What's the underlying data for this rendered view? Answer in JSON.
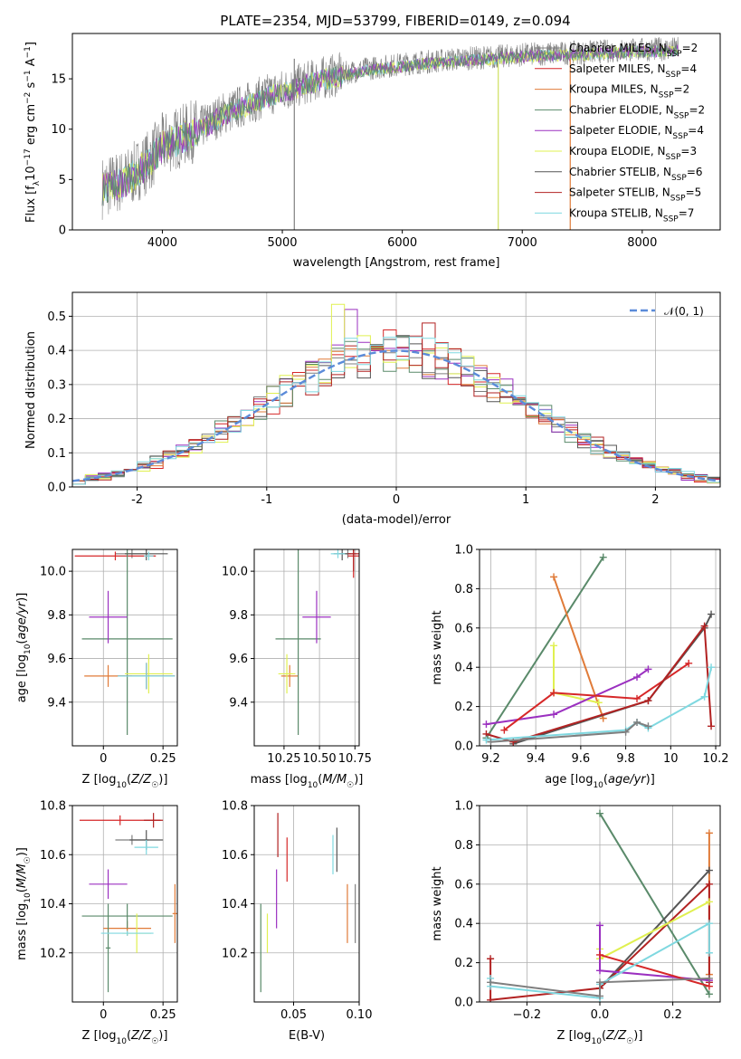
{
  "title": "PLATE=2354, MJD=53799, FIBERID=0149, z=0.094",
  "colors": {
    "Chabrier MILES": "#7f7f7f",
    "Salpeter MILES": "#d62728",
    "Kroupa MILES": "#e07b39",
    "Chabrier ELODIE": "#5a8a6a",
    "Salpeter ELODIE": "#9b30c0",
    "Kroupa ELODIE": "#e0f050",
    "Chabrier STELIB": "#555555",
    "Salpeter STELIB": "#b22222",
    "Kroupa STELIB": "#7fd8e0",
    "gaussian": "#5b8bd9"
  },
  "legend": [
    {
      "model": "Chabrier MILES",
      "pre": "Chabrier MILES, N",
      "sub": "SSP",
      "post": "=2"
    },
    {
      "model": "Salpeter MILES",
      "pre": "Salpeter MILES, N",
      "sub": "SSP",
      "post": "=4"
    },
    {
      "model": "Kroupa MILES",
      "pre": "Kroupa MILES, N",
      "sub": "SSP",
      "post": "=2"
    },
    {
      "model": "Chabrier ELODIE",
      "pre": "Chabrier ELODIE, N",
      "sub": "SSP",
      "post": "=2"
    },
    {
      "model": "Salpeter ELODIE",
      "pre": "Salpeter ELODIE, N",
      "sub": "SSP",
      "post": "=4"
    },
    {
      "model": "Kroupa ELODIE",
      "pre": "Kroupa ELODIE, N",
      "sub": "SSP",
      "post": "=3"
    },
    {
      "model": "Chabrier STELIB",
      "pre": "Chabrier STELIB, N",
      "sub": "SSP",
      "post": "=6"
    },
    {
      "model": "Salpeter STELIB",
      "pre": "Salpeter STELIB, N",
      "sub": "SSP",
      "post": "=5"
    },
    {
      "model": "Kroupa STELIB",
      "pre": "Kroupa STELIB, N",
      "sub": "SSP",
      "post": "=7"
    }
  ],
  "chart_data": [
    {
      "type": "line",
      "id": "spectrum",
      "xlabel": "wavelength [Angstrom, rest frame]",
      "ylabel": "Flux [fλ10⁻¹⁷ erg cm⁻² s⁻¹ A⁻¹]",
      "xlim": [
        3250,
        8650
      ],
      "ylim": [
        0,
        19.5
      ],
      "xticks": [
        4000,
        5000,
        6000,
        7000,
        8000
      ],
      "yticks": [
        0,
        5,
        10,
        15
      ],
      "data_envelope": {
        "x": [
          3500,
          3600,
          3700,
          3800,
          3900,
          4000,
          4100,
          4200,
          4300,
          4500,
          4700,
          4900,
          5100,
          5300,
          5500,
          5700,
          5900,
          6100,
          6300,
          6500,
          6800,
          7000,
          7200,
          7500,
          7800,
          8000,
          8300
        ],
        "y": [
          4.2,
          4.6,
          5.0,
          6.0,
          7.0,
          8.5,
          9.0,
          9.5,
          10.0,
          11.5,
          12.5,
          13.5,
          14.2,
          15.0,
          15.5,
          16.0,
          16.3,
          16.6,
          16.8,
          17.0,
          17.2,
          17.4,
          17.5,
          17.6,
          17.8,
          17.9,
          18.0
        ]
      },
      "glitches_x": [
        5100,
        6800,
        7400
      ]
    },
    {
      "type": "histogram",
      "id": "residuals",
      "xlabel": "(data-model)/error",
      "ylabel": "Normed distribution",
      "xlim": [
        -2.5,
        2.5
      ],
      "ylim": [
        0,
        0.57
      ],
      "xticks": [
        -2,
        -1,
        0,
        1,
        2
      ],
      "yticks": [
        0.0,
        0.1,
        0.2,
        0.3,
        0.4,
        0.5
      ],
      "bin_width": 0.1,
      "reference": {
        "label": "𝒩(0, 1)",
        "mean": 0,
        "sigma": 1
      },
      "notable_bins": [
        {
          "model": "Kroupa ELODIE",
          "x_left": -0.5,
          "value": 0.535
        },
        {
          "model": "Salpeter ELODIE",
          "x_left": -0.4,
          "value": 0.52
        },
        {
          "model": "Salpeter STELIB",
          "x_left": 0.2,
          "value": 0.48
        }
      ]
    },
    {
      "type": "scatter",
      "id": "age-vs-Z",
      "xlabel": "Z [log10(Z/Z☉)]",
      "ylabel": "age  [log10(age/yr)]",
      "xlim": [
        -0.13,
        0.31
      ],
      "ylim": [
        9.2,
        10.1
      ],
      "xticks": [
        0.0,
        0.25
      ],
      "yticks": [
        9.4,
        9.6,
        9.8,
        10.0
      ],
      "points": [
        {
          "model": "Chabrier MILES",
          "x": 0.12,
          "y": 10.08,
          "xerr": 0.07,
          "yerr": 0.02
        },
        {
          "model": "Salpeter MILES",
          "x": 0.05,
          "y": 10.07,
          "xerr": 0.17,
          "yerr": 0.02
        },
        {
          "model": "Kroupa MILES",
          "x": 0.02,
          "y": 9.52,
          "xerr": 0.1,
          "yerr": 0.05
        },
        {
          "model": "Chabrier ELODIE",
          "x": 0.1,
          "y": 9.69,
          "xerr": 0.19,
          "yerr": 0.44
        },
        {
          "model": "Salpeter ELODIE",
          "x": 0.02,
          "y": 9.79,
          "xerr": 0.08,
          "yerr": 0.12
        },
        {
          "model": "Kroupa ELODIE",
          "x": 0.19,
          "y": 9.53,
          "xerr": 0.1,
          "yerr": 0.09
        },
        {
          "model": "Chabrier STELIB",
          "x": 0.18,
          "y": 10.08,
          "xerr": 0.09,
          "yerr": 0.03
        },
        {
          "model": "Salpeter STELIB",
          "x": 0.18,
          "y": 9.52,
          "xerr": 0.12,
          "yerr": 0.06
        },
        {
          "model": "Kroupa STELIB",
          "x": 0.18,
          "y": 9.52,
          "xerr": 0.12,
          "yerr": 0.06
        },
        {
          "model": "Kroupa STELIB",
          "x": 0.19,
          "y": 10.07,
          "xerr": 0.02,
          "yerr": 0.02
        }
      ]
    },
    {
      "type": "scatter",
      "id": "age-vs-mass",
      "xlabel": "mass [log10(M/M☉)]",
      "xlim": [
        10.04,
        10.78
      ],
      "ylim": [
        9.2,
        10.1
      ],
      "xticks": [
        10.25,
        10.5,
        10.75
      ],
      "xtick_labels": [
        "10.25",
        "10.50",
        "10.75"
      ],
      "yticks": [
        9.4,
        9.6,
        9.8,
        10.0
      ],
      "points": [
        {
          "model": "Chabrier MILES",
          "x": 10.7,
          "y": 10.08,
          "xerr": 0.06,
          "yerr": 0.02
        },
        {
          "model": "Salpeter MILES",
          "x": 10.74,
          "y": 10.07,
          "xerr": 0.04,
          "yerr": 0.1
        },
        {
          "model": "Kroupa MILES",
          "x": 10.29,
          "y": 9.52,
          "xerr": 0.06,
          "yerr": 0.05
        },
        {
          "model": "Chabrier ELODIE",
          "x": 10.35,
          "y": 9.69,
          "xerr": 0.16,
          "yerr": 0.44
        },
        {
          "model": "Salpeter ELODIE",
          "x": 10.48,
          "y": 9.79,
          "xerr": 0.1,
          "yerr": 0.12
        },
        {
          "model": "Kroupa ELODIE",
          "x": 10.27,
          "y": 9.53,
          "xerr": 0.06,
          "yerr": 0.09
        },
        {
          "model": "Chabrier STELIB",
          "x": 10.66,
          "y": 10.08,
          "xerr": 0.06,
          "yerr": 0.03
        },
        {
          "model": "Salpeter STELIB",
          "x": 10.74,
          "y": 10.08,
          "xerr": 0.04,
          "yerr": 0.08
        },
        {
          "model": "Kroupa STELIB",
          "x": 10.63,
          "y": 10.08,
          "xerr": 0.05,
          "yerr": 0.02
        }
      ]
    },
    {
      "type": "line",
      "id": "mass-weight-vs-age",
      "xlabel": "age  [log10(age/yr)]",
      "ylabel": "mass weight",
      "xlim": [
        9.15,
        10.22
      ],
      "ylim": [
        0,
        1.0
      ],
      "xticks": [
        9.2,
        9.4,
        9.6,
        9.8,
        10.0,
        10.2
      ],
      "yticks": [
        0.0,
        0.2,
        0.4,
        0.6,
        0.8,
        1.0
      ],
      "series": [
        {
          "model": "Chabrier ELODIE",
          "x": [
            9.18,
            9.7
          ],
          "y": [
            0.04,
            0.96
          ]
        },
        {
          "model": "Kroupa MILES",
          "x": [
            9.48,
            9.7
          ],
          "y": [
            0.86,
            0.14
          ]
        },
        {
          "model": "Kroupa ELODIE",
          "x": [
            9.48,
            9.48,
            9.68
          ],
          "y": [
            0.51,
            0.27,
            0.22
          ]
        },
        {
          "model": "Salpeter ELODIE",
          "x": [
            9.18,
            9.48,
            9.85,
            9.9
          ],
          "y": [
            0.11,
            0.16,
            0.35,
            0.39
          ]
        },
        {
          "model": "Salpeter MILES",
          "x": [
            9.26,
            9.48,
            9.85,
            10.08
          ],
          "y": [
            0.08,
            0.27,
            0.24,
            0.42
          ]
        },
        {
          "model": "Chabrier STELIB",
          "x": [
            9.3,
            9.9,
            10.15,
            10.18
          ],
          "y": [
            0.01,
            0.23,
            0.6,
            0.67
          ]
        },
        {
          "model": "Salpeter STELIB",
          "x": [
            9.18,
            9.3,
            9.9,
            10.15,
            10.18
          ],
          "y": [
            0.06,
            0.02,
            0.23,
            0.61,
            0.1
          ]
        },
        {
          "model": "Kroupa STELIB",
          "x": [
            9.18,
            9.8,
            9.85,
            9.9,
            10.15,
            10.18
          ],
          "y": [
            0.03,
            0.08,
            0.12,
            0.09,
            0.25,
            0.4
          ]
        },
        {
          "model": "Chabrier MILES",
          "x": [
            9.2,
            9.8,
            9.85,
            9.9
          ],
          "y": [
            0.02,
            0.07,
            0.12,
            0.1
          ]
        }
      ]
    },
    {
      "type": "scatter",
      "id": "mass-vs-Z",
      "xlabel": "Z [log10(Z/Z☉)]",
      "ylabel": "mass [log10(M/M☉)]",
      "xlim": [
        -0.13,
        0.31
      ],
      "ylim": [
        10.0,
        10.8
      ],
      "xticks": [
        0.0,
        0.25
      ],
      "yticks": [
        10.2,
        10.4,
        10.6,
        10.8
      ],
      "points": [
        {
          "model": "Chabrier MILES",
          "x": 0.12,
          "y": 10.66,
          "xerr": 0.07,
          "yerr": 0.02
        },
        {
          "model": "Salpeter MILES",
          "x": 0.07,
          "y": 10.74,
          "xerr": 0.17,
          "yerr": 0.02
        },
        {
          "model": "Kroupa MILES",
          "x": 0.1,
          "y": 10.3,
          "xerr": 0.1,
          "yerr": 0.03
        },
        {
          "model": "Chabrier ELODIE",
          "x": 0.1,
          "y": 10.35,
          "xerr": 0.19,
          "yerr": 0.05
        },
        {
          "model": "Chabrier ELODIE",
          "x": 0.02,
          "y": 10.22,
          "xerr": 0.01,
          "yerr": 0.18
        },
        {
          "model": "Salpeter ELODIE",
          "x": 0.02,
          "y": 10.48,
          "xerr": 0.08,
          "yerr": 0.06
        },
        {
          "model": "Kroupa ELODIE",
          "x": 0.14,
          "y": 10.28,
          "xerr": 0.06,
          "yerr": 0.08
        },
        {
          "model": "Chabrier STELIB",
          "x": 0.18,
          "y": 10.66,
          "xerr": 0.07,
          "yerr": 0.04
        },
        {
          "model": "Salpeter STELIB",
          "x": 0.21,
          "y": 10.74,
          "xerr": 0.04,
          "yerr": 0.03
        },
        {
          "model": "Kroupa STELIB",
          "x": 0.18,
          "y": 10.63,
          "xerr": 0.05,
          "yerr": 0.03
        },
        {
          "model": "Kroupa STELIB",
          "x": 0.1,
          "y": 10.28,
          "xerr": 0.11,
          "yerr": 0.01
        },
        {
          "model": "Kroupa MILES",
          "x": 0.3,
          "y": 10.36,
          "xerr": 0.01,
          "yerr": 0.12
        }
      ]
    },
    {
      "type": "scatter",
      "id": "mass-vs-EBV",
      "xlabel": "E(B-V)",
      "xlim": [
        0.02,
        0.1
      ],
      "ylim": [
        10.0,
        10.8
      ],
      "xticks": [
        0.05,
        0.1
      ],
      "xtick_labels": [
        "0.05",
        "0.10"
      ],
      "yticks": [
        10.2,
        10.4,
        10.6,
        10.8
      ],
      "points": [
        {
          "model": "Chabrier ELODIE",
          "x": 0.025,
          "y": 10.22,
          "yerr": 0.18
        },
        {
          "model": "Kroupa ELODIE",
          "x": 0.03,
          "y": 10.28,
          "yerr": 0.08
        },
        {
          "model": "Salpeter ELODIE",
          "x": 0.037,
          "y": 10.42,
          "yerr": 0.12
        },
        {
          "model": "Salpeter STELIB",
          "x": 0.038,
          "y": 10.68,
          "yerr": 0.09
        },
        {
          "model": "Salpeter MILES",
          "x": 0.045,
          "y": 10.58,
          "yerr": 0.09
        },
        {
          "model": "Kroupa STELIB",
          "x": 0.08,
          "y": 10.6,
          "yerr": 0.08
        },
        {
          "model": "Chabrier STELIB",
          "x": 0.083,
          "y": 10.62,
          "yerr": 0.09
        },
        {
          "model": "Kroupa MILES",
          "x": 0.091,
          "y": 10.36,
          "yerr": 0.12
        },
        {
          "model": "Chabrier MILES",
          "x": 0.097,
          "y": 10.36,
          "yerr": 0.12
        }
      ]
    },
    {
      "type": "line",
      "id": "mass-weight-vs-Z",
      "xlabel": "Z [log10(Z/Z☉)]",
      "ylabel": "mass weight",
      "xlim": [
        -0.33,
        0.33
      ],
      "ylim": [
        0,
        1.0
      ],
      "xticks": [
        -0.2,
        0.0,
        0.2
      ],
      "xtick_labels": [
        "−0.2",
        "0.0",
        "0.2"
      ],
      "yticks": [
        0.0,
        0.2,
        0.4,
        0.6,
        0.8,
        1.0
      ],
      "series": [
        {
          "model": "Chabrier ELODIE",
          "x": [
            0.0,
            0.3
          ],
          "y": [
            0.96,
            0.04
          ]
        },
        {
          "model": "Kroupa MILES",
          "x": [
            0.3,
            0.3
          ],
          "y": [
            0.86,
            0.14
          ]
        },
        {
          "model": "Chabrier STELIB",
          "x": [
            0.0,
            0.3
          ],
          "y": [
            0.07,
            0.67
          ]
        },
        {
          "model": "Salpeter STELIB",
          "x": [
            -0.3,
            -0.3,
            0.0,
            0.3,
            0.3
          ],
          "y": [
            0.22,
            0.01,
            0.07,
            0.6,
            0.1
          ]
        },
        {
          "model": "Kroupa ELODIE",
          "x": [
            0.0,
            0.0,
            0.3
          ],
          "y": [
            0.27,
            0.22,
            0.51
          ]
        },
        {
          "model": "Salpeter ELODIE",
          "x": [
            0.0,
            0.0,
            0.3
          ],
          "y": [
            0.39,
            0.16,
            0.11
          ]
        },
        {
          "model": "Salpeter MILES",
          "x": [
            0.0,
            0.3
          ],
          "y": [
            0.24,
            0.08
          ]
        },
        {
          "model": "Kroupa STELIB",
          "x": [
            -0.3,
            -0.3,
            0.0,
            0.0,
            0.3,
            0.3
          ],
          "y": [
            0.12,
            0.08,
            0.02,
            0.09,
            0.4,
            0.25
          ]
        },
        {
          "model": "Chabrier MILES",
          "x": [
            -0.3,
            0.0,
            0.0,
            0.3
          ],
          "y": [
            0.1,
            0.03,
            0.1,
            0.12
          ]
        }
      ]
    }
  ]
}
